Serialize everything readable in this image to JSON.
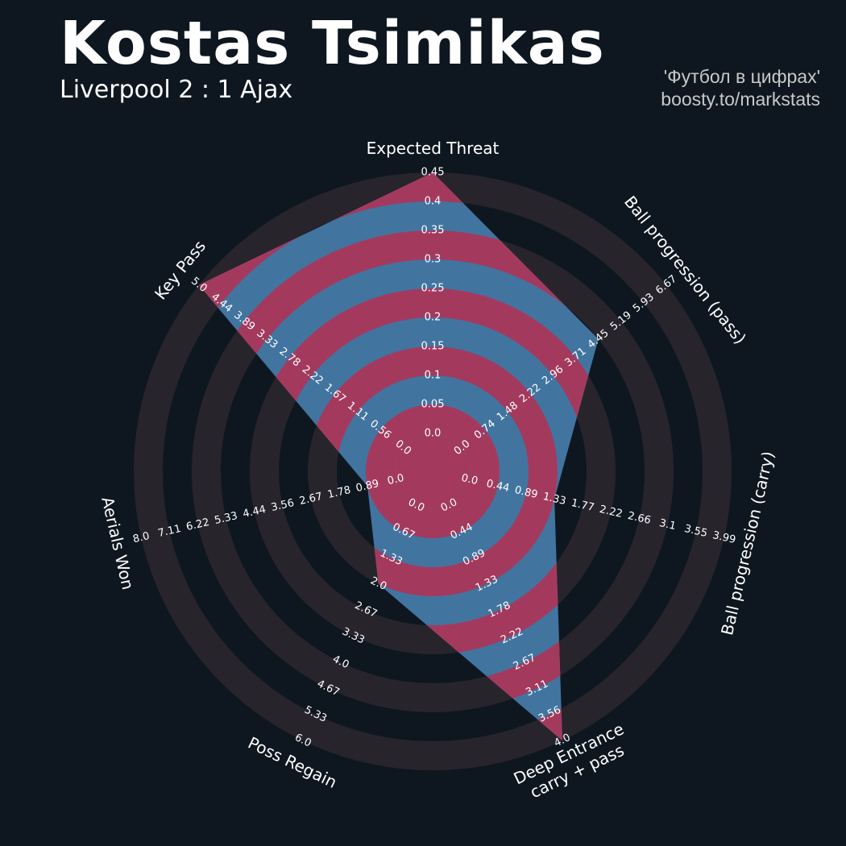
{
  "header": {
    "title": "Kostas Tsimikas",
    "subtitle": "Liverpool 2 : 1 Ajax",
    "credit_line1": "'Футбол в цифрах'",
    "credit_line2": "boosty.to/markstats"
  },
  "colors": {
    "background": "#0e1720",
    "outer_rings": "#28242c",
    "inner_rings": "#a33a5e",
    "player_polygon": "#4274a0",
    "text": "#ffffff"
  },
  "chart_data": {
    "type": "radar",
    "params": [
      {
        "label": "Expected Threat",
        "value": 0.45,
        "ticks": [
          "0.0",
          "0.05",
          "0.1",
          "0.15",
          "0.2",
          "0.25",
          "0.3",
          "0.35",
          "0.4",
          "0.45"
        ]
      },
      {
        "label": "Ball progression (pass)",
        "value": 4.45,
        "ticks": [
          "0.0",
          "0.74",
          "1.48",
          "2.22",
          "2.96",
          "3.71",
          "4.45",
          "5.19",
          "5.93",
          "6.67"
        ]
      },
      {
        "label": "Ball progression (carry)",
        "value": 1.33,
        "ticks": [
          "0.0",
          "0.44",
          "0.89",
          "1.33",
          "1.77",
          "2.22",
          "2.66",
          "3.1",
          "3.55",
          "3.99"
        ]
      },
      {
        "label": "Deep Entrance\ncarry + pass",
        "value": 4.0,
        "ticks": [
          "0.0",
          "0.44",
          "0.89",
          "1.33",
          "1.78",
          "2.22",
          "2.67",
          "3.11",
          "3.56",
          "4.0"
        ]
      },
      {
        "label": "Poss Regain",
        "value": 2.0,
        "ticks": [
          "0.0",
          "0.67",
          "1.33",
          "2.0",
          "2.67",
          "3.33",
          "4.0",
          "4.67",
          "5.33",
          "6.0"
        ]
      },
      {
        "label": "Aerials Won",
        "value": 0.89,
        "ticks": [
          "0.0",
          "0.89",
          "1.78",
          "2.67",
          "3.56",
          "4.44",
          "5.33",
          "6.22",
          "7.11",
          "8.0"
        ]
      },
      {
        "label": "Key Pass",
        "value": 5.0,
        "ticks": [
          "0.0",
          "0.56",
          "1.11",
          "1.67",
          "2.22",
          "2.78",
          "3.33",
          "3.89",
          "4.44",
          "5.0"
        ]
      }
    ]
  }
}
